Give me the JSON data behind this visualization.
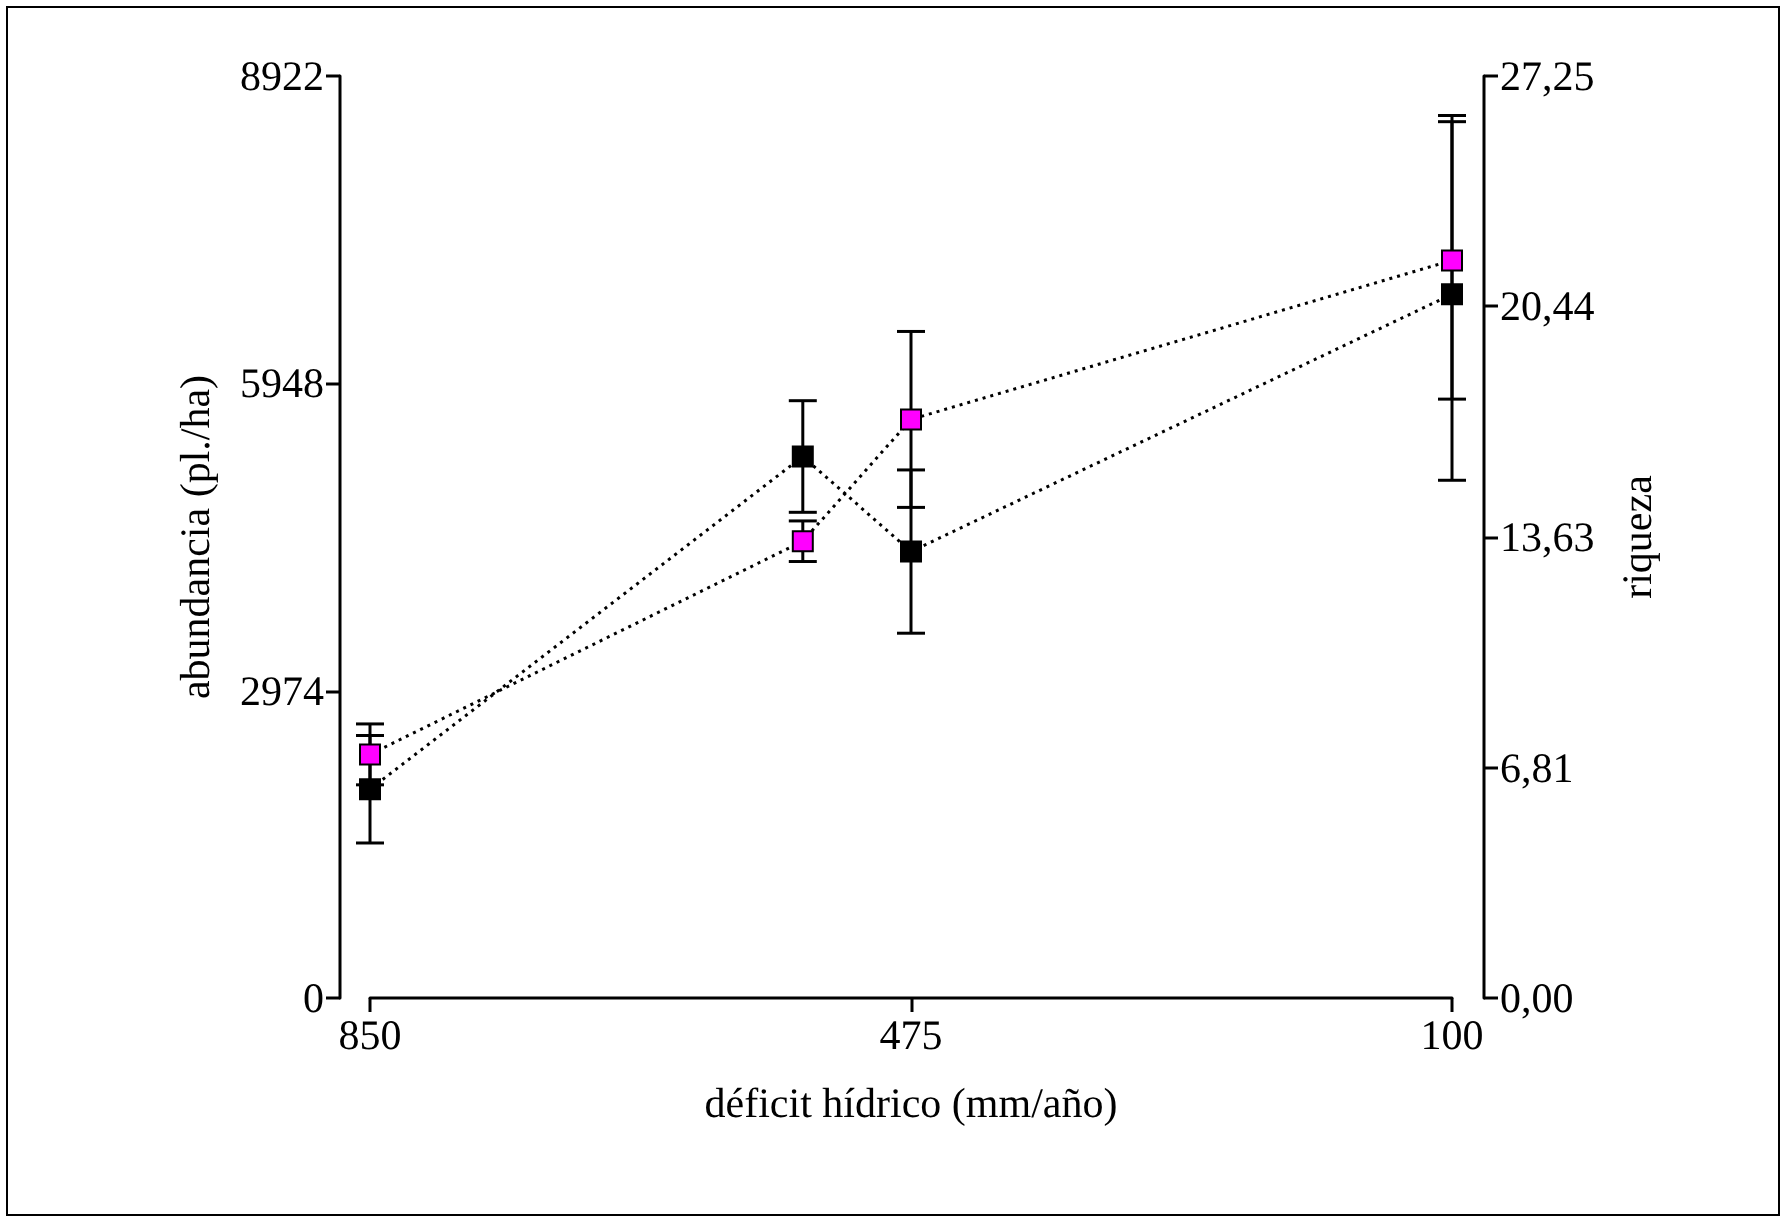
{
  "chart_data": {
    "type": "line",
    "xlabel": "déficit hídrico (mm/año)",
    "ylabel": "abundancia (pl./ha)",
    "y2label": "riqueza",
    "x": [
      850,
      550,
      475,
      100
    ],
    "series": [
      {
        "color": "#000000",
        "values": [
          2020,
          5240,
          4320,
          6810
        ],
        "errors": [
          520,
          540,
          790,
          [
            5010,
            8540
          ]
        ]
      },
      {
        "color": "#ff00ff",
        "axis": "y2",
        "values": [
          7.2,
          13.5,
          17.1,
          21.8
        ],
        "errors": [
          0.9,
          0.6,
          2.6,
          [
            17.7,
            25.9
          ]
        ]
      }
    ],
    "xlim": [
      850,
      100
    ],
    "xticks": [
      850,
      475,
      100
    ],
    "ylim": [
      0,
      8922
    ],
    "yticks": [
      0,
      2974,
      5948,
      8922
    ],
    "y2lim": [
      0,
      27.25
    ],
    "y2ticks": [
      {
        "value": 0,
        "label": "0,00"
      },
      {
        "value": 6.81,
        "label": "6,81"
      },
      {
        "value": 13.63,
        "label": "13,63"
      },
      {
        "value": 20.44,
        "label": "20,44"
      },
      {
        "value": 27.25,
        "label": "27,25"
      }
    ],
    "marker": "square",
    "line_style": "dotted",
    "grid": false
  }
}
